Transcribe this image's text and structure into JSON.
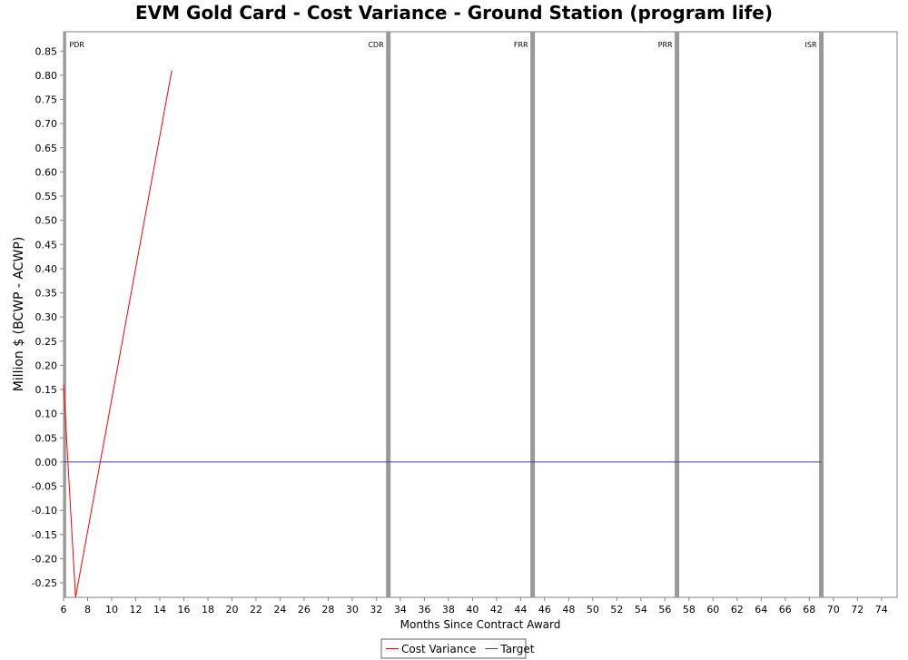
{
  "chart_data": {
    "type": "line",
    "title": "EVM Gold Card - Cost Variance - Ground Station (program life)",
    "xlabel": "Months Since Contract Award",
    "ylabel": "Million $ (BCWP - ACWP)",
    "xlim": [
      6,
      75.3
    ],
    "ylim": [
      -0.28,
      0.89
    ],
    "x_ticks": [
      6,
      8,
      10,
      12,
      14,
      16,
      18,
      20,
      22,
      24,
      26,
      28,
      30,
      32,
      34,
      36,
      38,
      40,
      42,
      44,
      46,
      48,
      50,
      52,
      54,
      56,
      58,
      60,
      62,
      64,
      66,
      68,
      70,
      72,
      74
    ],
    "y_ticks": [
      -0.25,
      -0.2,
      -0.15,
      -0.1,
      -0.05,
      0.0,
      0.05,
      0.1,
      0.15,
      0.2,
      0.25,
      0.3,
      0.35,
      0.4,
      0.45,
      0.5,
      0.55,
      0.6,
      0.65,
      0.7,
      0.75,
      0.8,
      0.85
    ],
    "y_tick_decimals": 2,
    "grid": false,
    "legend_position": "bottom-center",
    "milestones": [
      {
        "label": "PDR",
        "x": 6.1,
        "label_side": "right"
      },
      {
        "label": "CDR",
        "x": 33,
        "label_side": "left"
      },
      {
        "label": "FRR",
        "x": 45,
        "label_side": "left"
      },
      {
        "label": "PRR",
        "x": 57,
        "label_side": "left"
      },
      {
        "label": "ISR",
        "x": 69,
        "label_side": "left"
      }
    ],
    "series": [
      {
        "name": "Cost Variance",
        "color": "#ff0000",
        "x": [
          6,
          7,
          15
        ],
        "y": [
          0.16,
          -0.28,
          0.81
        ]
      },
      {
        "name": "Target",
        "color": "#4040a0",
        "x": [
          6,
          69
        ],
        "y": [
          0.0,
          0.0
        ]
      }
    ]
  }
}
